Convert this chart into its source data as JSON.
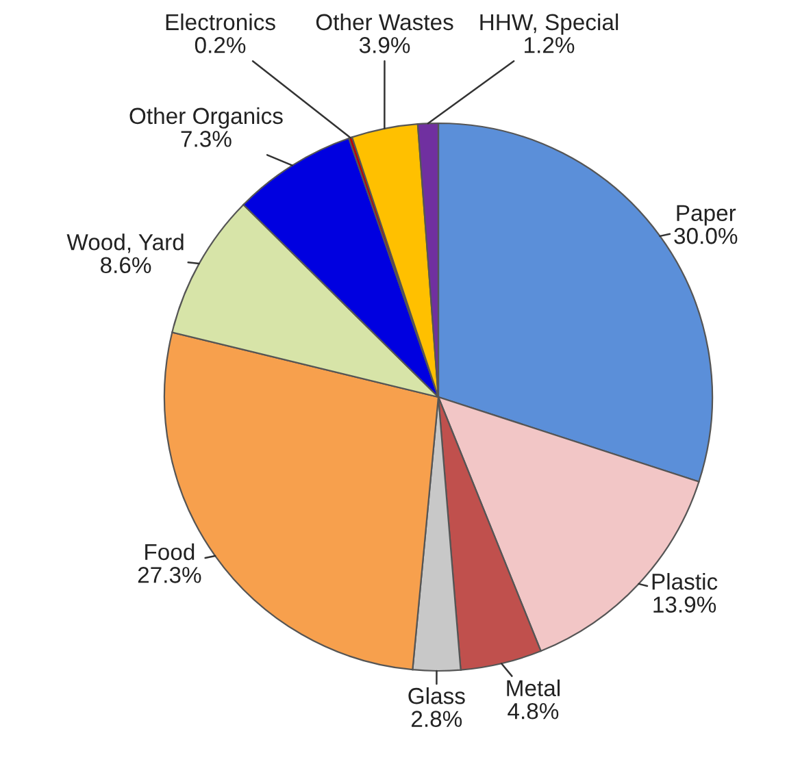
{
  "chart_data": {
    "type": "pie",
    "categories": [
      "Paper",
      "Plastic",
      "Metal",
      "Glass",
      "Food",
      "Wood, Yard",
      "Other Organics",
      "Electronics",
      "Other Wastes",
      "HHW, Special"
    ],
    "values": [
      30.0,
      13.9,
      4.8,
      2.8,
      27.3,
      8.6,
      7.3,
      0.2,
      3.9,
      1.2
    ],
    "value_labels": [
      "30.0%",
      "13.9%",
      "4.8%",
      "2.8%",
      "27.3%",
      "8.6%",
      "7.3%",
      "0.2%",
      "3.9%",
      "1.2%"
    ],
    "colors": [
      "#5b8fd9",
      "#f2c6c6",
      "#c0504d",
      "#c8c8c8",
      "#f7a04d",
      "#d7e4a8",
      "#0000e0",
      "#c00000",
      "#ffc000",
      "#7030a0"
    ]
  }
}
